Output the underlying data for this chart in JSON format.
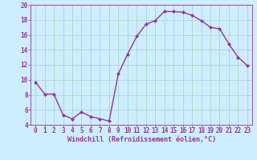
{
  "x": [
    0,
    1,
    2,
    3,
    4,
    5,
    6,
    7,
    8,
    9,
    10,
    11,
    12,
    13,
    14,
    15,
    16,
    17,
    18,
    19,
    20,
    21,
    22,
    23
  ],
  "y": [
    9.7,
    8.1,
    8.1,
    5.3,
    4.8,
    5.7,
    5.1,
    4.8,
    4.5,
    10.8,
    13.4,
    15.8,
    17.4,
    17.9,
    19.1,
    19.1,
    19.0,
    18.6,
    17.9,
    17.0,
    16.8,
    14.8,
    13.0,
    11.9
  ],
  "line_color": "#993399",
  "marker": "D",
  "marker_size": 2,
  "bg_color": "#cceeff",
  "grid_color": "#aaccbb",
  "xlabel": "Windchill (Refroidissement éolien,°C)",
  "ylim": [
    4,
    20
  ],
  "xlim": [
    -0.5,
    23.5
  ],
  "yticks": [
    4,
    6,
    8,
    10,
    12,
    14,
    16,
    18,
    20
  ],
  "xticks": [
    0,
    1,
    2,
    3,
    4,
    5,
    6,
    7,
    8,
    9,
    10,
    11,
    12,
    13,
    14,
    15,
    16,
    17,
    18,
    19,
    20,
    21,
    22,
    23
  ],
  "tick_color": "#993399",
  "xlabel_color": "#993399",
  "tick_fontsize": 5.5,
  "xlabel_fontsize": 6.0,
  "line_width": 1.0,
  "grid_linewidth": 0.5,
  "spine_color": "#993399"
}
